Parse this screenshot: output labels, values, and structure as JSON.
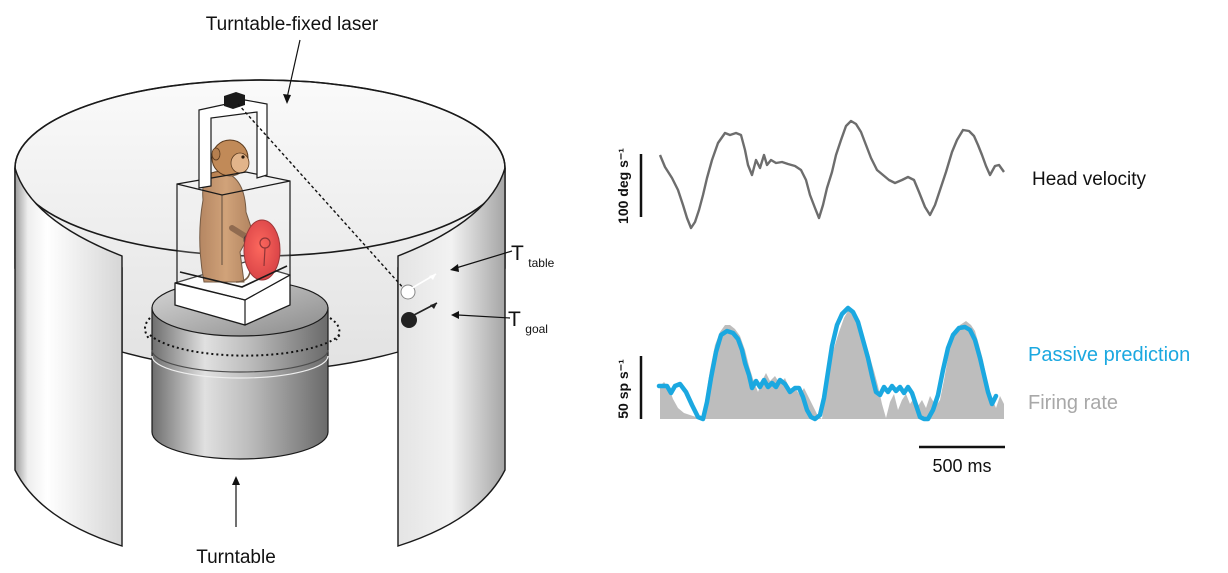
{
  "setup": {
    "laser_label": "Turntable-fixed laser",
    "turntable_label": "Turntable",
    "t_table_main": "T",
    "t_table_sub": "table",
    "t_goal_main": "T",
    "t_goal_sub": "goal"
  },
  "traces": {
    "head_velocity_label": "Head velocity",
    "head_scale_label": "100 deg s⁻¹",
    "passive_prediction_label": "Passive prediction",
    "firing_rate_label": "Firing rate",
    "rate_scale_label": "50 sp s⁻¹",
    "time_scale_label": "500 ms"
  },
  "colors": {
    "prediction": "#1ba8e0",
    "firing_rate": "#bdbdbd",
    "head_trace": "#6d6d6d",
    "target_goal": "#222222",
    "target_table": "#ffffff",
    "monkey": "#c0895a",
    "disc": "#e8262a"
  }
}
